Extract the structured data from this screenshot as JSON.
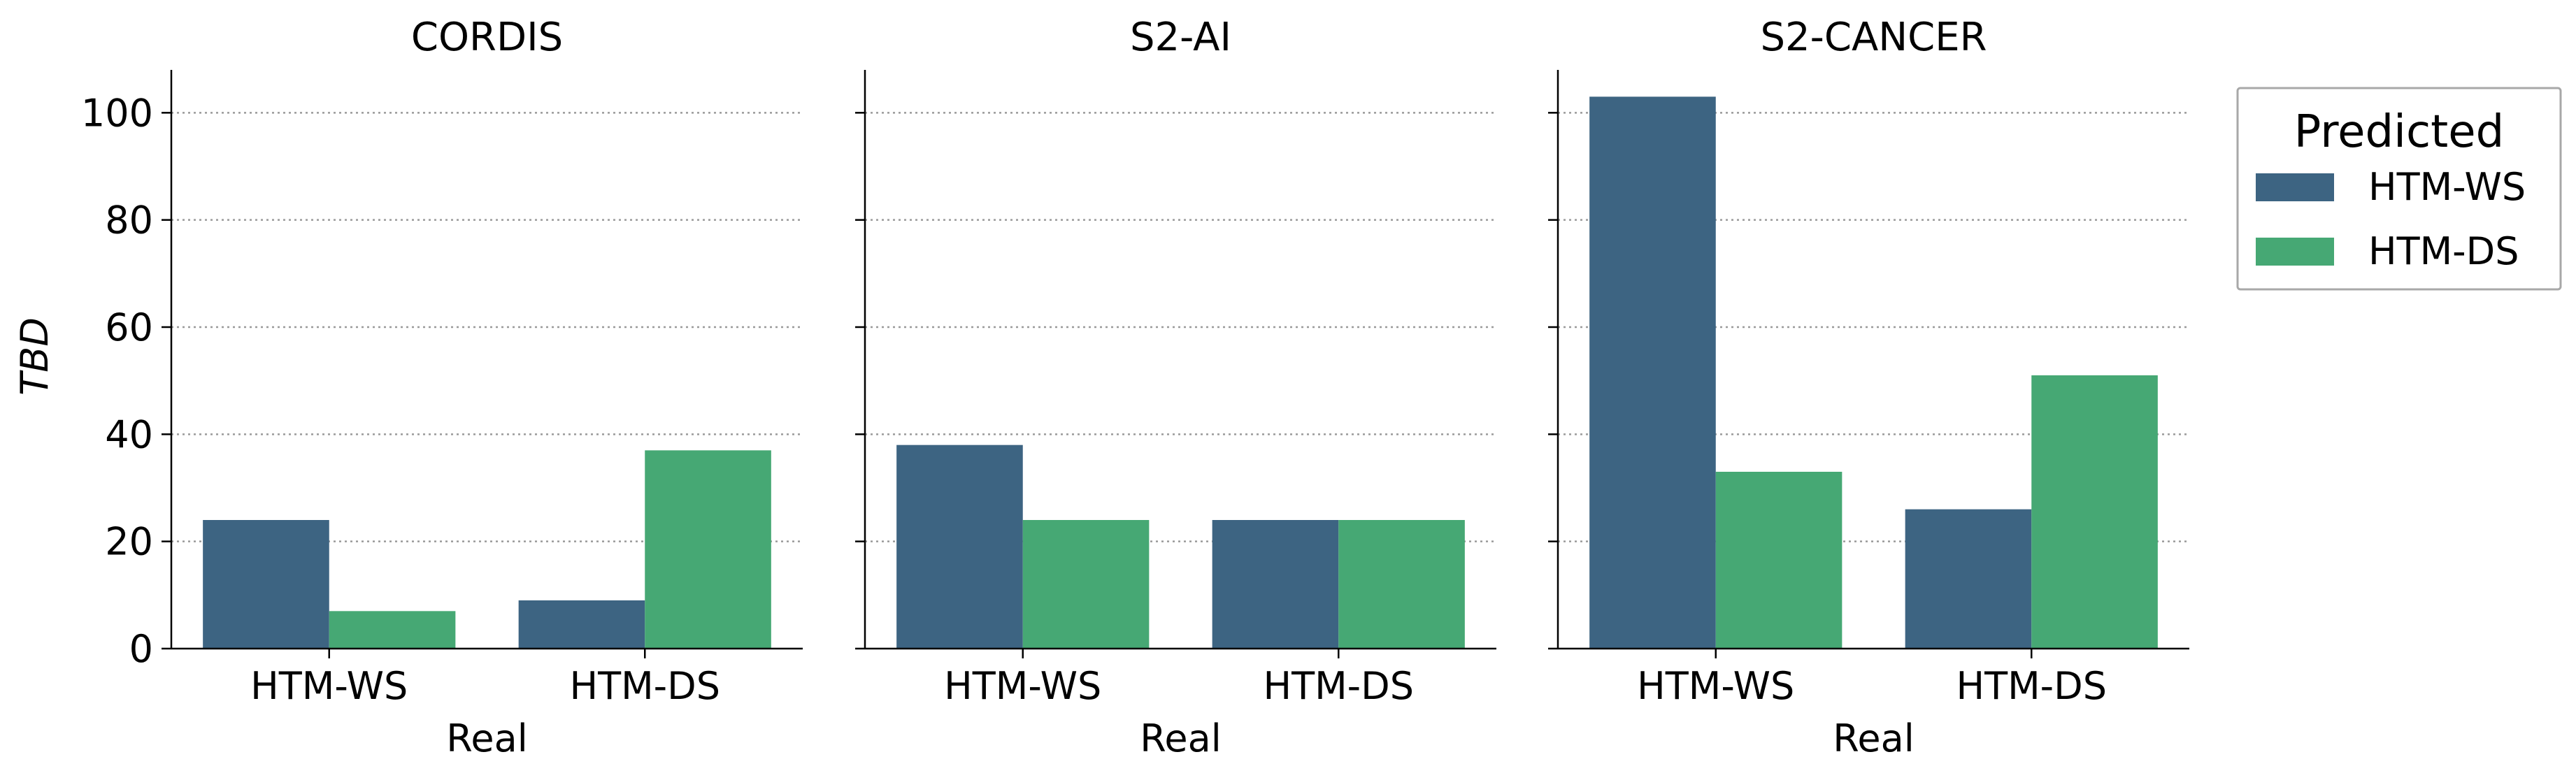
{
  "chart_data": {
    "type": "bar",
    "ylabel": "TBD",
    "xlabel": "Real",
    "ylim": [
      0,
      108
    ],
    "yticks": [
      0,
      20,
      40,
      60,
      80,
      100
    ],
    "grid": "y-dotted",
    "legend": {
      "title": "Predicted",
      "placement": "outside-right-top",
      "entries": [
        "HTM-WS",
        "HTM-DS"
      ]
    },
    "colors": {
      "HTM-WS": "#3d6482",
      "HTM-DS": "#46a874"
    },
    "panels": [
      {
        "title": "CORDIS",
        "categories": [
          "HTM-WS",
          "HTM-DS"
        ],
        "series": [
          {
            "name": "HTM-WS",
            "values": [
              24,
              9
            ]
          },
          {
            "name": "HTM-DS",
            "values": [
              7,
              37
            ]
          }
        ]
      },
      {
        "title": "S2-AI",
        "categories": [
          "HTM-WS",
          "HTM-DS"
        ],
        "series": [
          {
            "name": "HTM-WS",
            "values": [
              38,
              24
            ]
          },
          {
            "name": "HTM-DS",
            "values": [
              24,
              24
            ]
          }
        ]
      },
      {
        "title": "S2-CANCER",
        "categories": [
          "HTM-WS",
          "HTM-DS"
        ],
        "series": [
          {
            "name": "HTM-WS",
            "values": [
              103,
              26
            ]
          },
          {
            "name": "HTM-DS",
            "values": [
              33,
              51
            ]
          }
        ]
      }
    ]
  }
}
